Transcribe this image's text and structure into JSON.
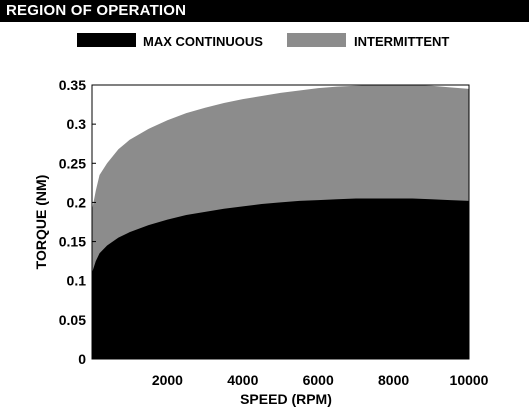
{
  "header": {
    "title": "REGION OF OPERATION"
  },
  "chart_data": {
    "type": "area",
    "title": "REGION OF OPERATION",
    "xlabel": "SPEED (RPM)",
    "ylabel": "TORQUE (NM)",
    "xlim": [
      0,
      10000
    ],
    "ylim": [
      0,
      0.35
    ],
    "x_ticks": [
      2000,
      4000,
      6000,
      8000,
      10000
    ],
    "x_tick_labels": [
      "2000",
      "4000",
      "6000",
      "8000",
      "10000"
    ],
    "y_ticks": [
      0,
      0.05,
      0.1,
      0.15,
      0.2,
      0.25,
      0.3,
      0.35
    ],
    "y_tick_labels": [
      "0",
      "0.05",
      "0.1",
      "0.15",
      "0.2",
      "0.25",
      "0.3",
      "0.35"
    ],
    "legend_position": "top",
    "grid": false,
    "x": [
      0,
      100,
      200,
      400,
      700,
      1000,
      1500,
      2000,
      2500,
      3000,
      3500,
      4000,
      4500,
      5000,
      5500,
      6000,
      6500,
      7000,
      7500,
      8000,
      8500,
      9000,
      9500,
      10000
    ],
    "series": [
      {
        "name": "MAX CONTINUOUS",
        "color": "#000000",
        "values": [
          0.11,
          0.125,
          0.135,
          0.145,
          0.155,
          0.162,
          0.171,
          0.178,
          0.184,
          0.188,
          0.192,
          0.195,
          0.198,
          0.2,
          0.202,
          0.203,
          0.204,
          0.205,
          0.205,
          0.205,
          0.205,
          0.204,
          0.203,
          0.202
        ]
      },
      {
        "name": "INTERMITTENT",
        "color": "#8c8c8c",
        "values": [
          0.19,
          0.215,
          0.235,
          0.25,
          0.268,
          0.28,
          0.294,
          0.305,
          0.314,
          0.321,
          0.327,
          0.332,
          0.336,
          0.34,
          0.343,
          0.346,
          0.348,
          0.349,
          0.35,
          0.35,
          0.35,
          0.349,
          0.347,
          0.345
        ]
      }
    ]
  }
}
